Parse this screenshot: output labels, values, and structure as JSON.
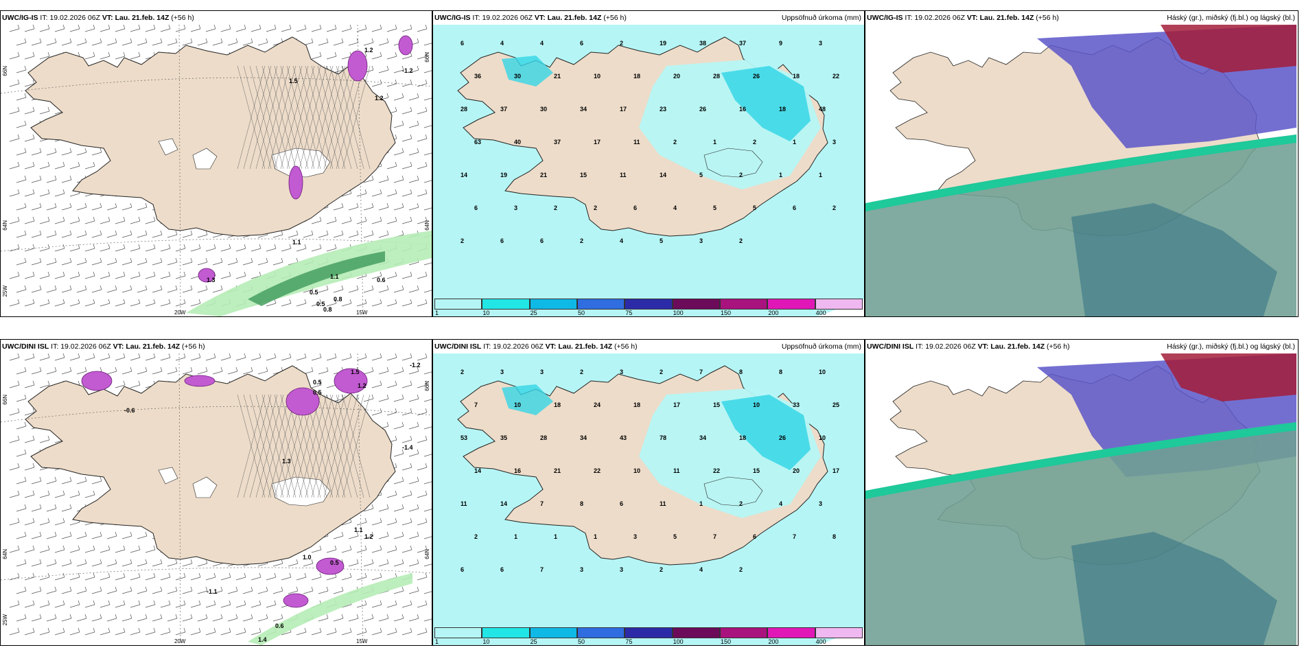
{
  "colors": {
    "land": "#eddcc9",
    "precip_light": "#b6f5f5",
    "precip_mid": "#36d6e6",
    "snow_low": "#6f9f93",
    "cloud_mid": "#5b56c9",
    "cloud_high": "#a31d3a",
    "green_band": "#1ec99a"
  },
  "panels": [
    {
      "model": "UWC/IG-IS",
      "it_label": "IT:",
      "it_value": "19.02.2026 06Z",
      "vt_label": "VT:",
      "vt_value": "Lau. 21.feb. 14Z",
      "lead": "(+56 h)",
      "title": "",
      "lat_labels": [
        "66N",
        "64N",
        "25W"
      ],
      "lat_labels_right": [
        "66N",
        "64N"
      ],
      "lon_labels": [
        "20W",
        "15W"
      ],
      "values": [
        "1.5",
        "1.2",
        "1.2",
        "0.6",
        "1.1",
        "-1.2",
        "0.5",
        "0.5",
        "0.8",
        "0.8",
        "1.3",
        "1.1"
      ]
    },
    {
      "model": "UWC/IG-IS",
      "it_label": "IT:",
      "it_value": "19.02.2026 06Z",
      "vt_label": "VT:",
      "vt_value": "Lau. 21.feb. 14Z",
      "lead": "(+56 h)",
      "title": "Uppsöfnuð úrkoma (mm)",
      "values": [
        "6",
        "4",
        "4",
        "6",
        "2",
        "19",
        "38",
        "37",
        "9",
        "3",
        "36",
        "30",
        "21",
        "10",
        "18",
        "20",
        "28",
        "26",
        "18",
        "22",
        "28",
        "37",
        "30",
        "34",
        "17",
        "23",
        "26",
        "16",
        "18",
        "48",
        "63",
        "40",
        "37",
        "17",
        "11",
        "2",
        "1",
        "2",
        "1",
        "3",
        "14",
        "19",
        "21",
        "15",
        "11",
        "14",
        "5",
        "2",
        "1",
        "1",
        "6",
        "3",
        "2",
        "2",
        "6",
        "4",
        "5",
        "5",
        "6",
        "2",
        "2",
        "6",
        "6",
        "2",
        "4",
        "5",
        "3",
        "2"
      ],
      "colorbar": [
        "1",
        "10",
        "25",
        "50",
        "75",
        "100",
        "150",
        "200",
        "400"
      ]
    },
    {
      "model": "UWC/IG-IS",
      "it_label": "IT:",
      "it_value": "19.02.2026 06Z",
      "vt_label": "VT:",
      "vt_value": "Lau. 21.feb. 14Z",
      "lead": "(+56 h)",
      "title": "Háský (gr.), miðský (fj.bl.) og lágský (bl.)"
    },
    {
      "model": "UWC/DINI ISL",
      "it_label": "IT:",
      "it_value": "19.02.2026 06Z",
      "vt_label": "VT:",
      "vt_value": "Lau. 21.feb. 14Z",
      "lead": "(+56 h)",
      "title": "",
      "lat_labels": [
        "66N",
        "64N",
        "25W"
      ],
      "lat_labels_right": [
        "66N",
        "64N"
      ],
      "lon_labels": [
        "20W",
        "15W"
      ],
      "values": [
        "-1.2",
        "1.5",
        "0.5",
        "0.5",
        "1.2",
        "-0.6",
        "1.3",
        "-1.4",
        "1.0",
        "0.5",
        "-1.1",
        "1.2",
        "0.6",
        "1.4",
        "1.1"
      ]
    },
    {
      "model": "UWC/DINI ISL",
      "it_label": "IT:",
      "it_value": "19.02.2026 06Z",
      "vt_label": "VT:",
      "vt_value": "Lau. 21.feb. 14Z",
      "lead": "(+56 h)",
      "title": "Uppsöfnuð úrkoma (mm)",
      "values": [
        "2",
        "3",
        "3",
        "2",
        "3",
        "2",
        "7",
        "8",
        "8",
        "10",
        "7",
        "10",
        "18",
        "24",
        "18",
        "17",
        "15",
        "10",
        "33",
        "25",
        "53",
        "35",
        "28",
        "34",
        "43",
        "78",
        "34",
        "18",
        "26",
        "10",
        "14",
        "16",
        "21",
        "22",
        "10",
        "11",
        "22",
        "15",
        "20",
        "17",
        "11",
        "14",
        "7",
        "8",
        "6",
        "11",
        "1",
        "2",
        "4",
        "3",
        "2",
        "1",
        "1",
        "1",
        "3",
        "5",
        "7",
        "6",
        "7",
        "8",
        "6",
        "6",
        "7",
        "3",
        "3",
        "2",
        "4",
        "2"
      ],
      "colorbar": [
        "1",
        "10",
        "25",
        "50",
        "75",
        "100",
        "150",
        "200",
        "400"
      ]
    },
    {
      "model": "UWC/DINI ISL",
      "it_label": "IT:",
      "it_value": "19.02.2026 06Z",
      "vt_label": "VT:",
      "vt_value": "Lau. 21.feb. 14Z",
      "lead": "(+56 h)",
      "title": "Háský (gr.), miðský (fj.bl.) og lágský (bl.)"
    }
  ]
}
